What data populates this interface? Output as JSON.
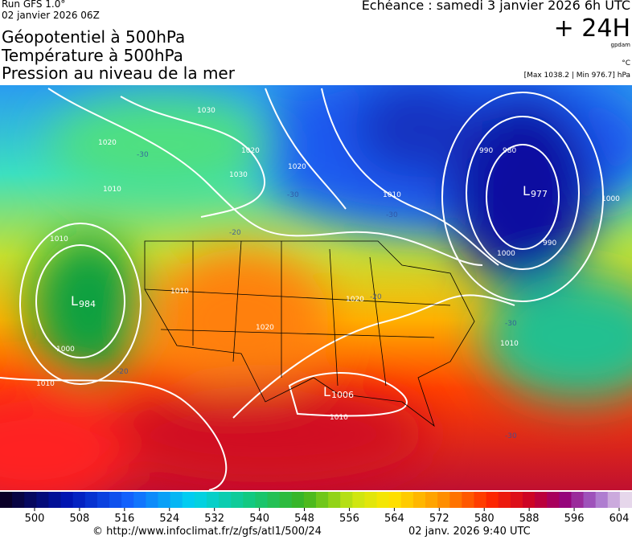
{
  "header": {
    "run": "Run GFS 1.0°",
    "date": "02 janvier 2026 06Z",
    "echeance": "Echéance : samedi 3 janvier 2026 6h UTC",
    "lead": "+ 24H",
    "unit_geo": "gpdam",
    "unit_temp": "°C",
    "range": "[Max 1038.2 | Min 976.7] hPa",
    "titles": [
      "Géopotentiel à 500hPa",
      "Température à 500hPa",
      "Pression au niveau de la mer"
    ]
  },
  "map": {
    "lows": [
      "977",
      "984",
      "1006"
    ],
    "isobar_labels": [
      "1020",
      "1030",
      "1030",
      "1010",
      "1010",
      "1000",
      "1010",
      "1010",
      "1020",
      "1020",
      "1020",
      "1010",
      "990",
      "980",
      "990",
      "1000",
      "1000",
      "1010",
      "1010",
      "1000",
      "1020"
    ],
    "temp_labels": [
      "-30",
      "-30",
      "-20",
      "-20",
      "-30",
      "-20",
      "-30",
      "-30"
    ]
  },
  "colorbar": {
    "labels": [
      500,
      508,
      516,
      524,
      532,
      540,
      548,
      556,
      564,
      572,
      580,
      588,
      596,
      604
    ]
  },
  "footer": {
    "url": "© http://www.infoclimat.fr/z/gfs/atl1/500/24",
    "time": "02 janv. 2026  9:40 UTC"
  }
}
